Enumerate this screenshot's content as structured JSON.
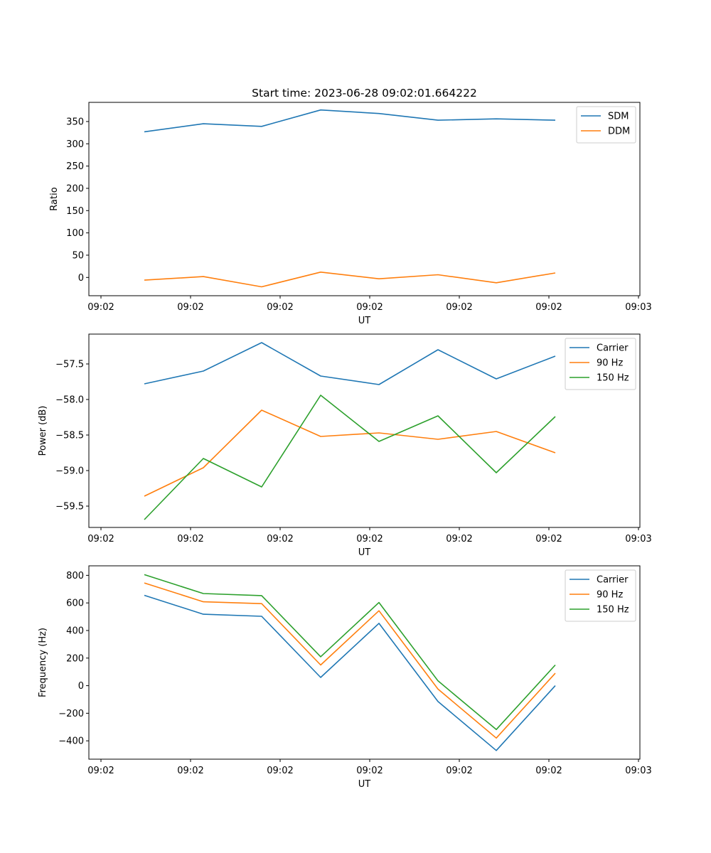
{
  "chart_data": [
    {
      "type": "line",
      "title": "Start time: 2023-06-28 09:02:01.664222",
      "xlabel": "UT",
      "ylabel": "Ratio",
      "x_tick_labels": [
        "09:02",
        "09:02",
        "09:02",
        "09:02",
        "09:02",
        "09:02",
        "09:03"
      ],
      "y_ticks": [
        0,
        50,
        100,
        150,
        200,
        250,
        300,
        350
      ],
      "ylim": [
        -41,
        393
      ],
      "legend_position": "top-right",
      "series": [
        {
          "name": "SDM",
          "color": "#1f77b4",
          "values": [
            327,
            345,
            339,
            376,
            368,
            353,
            356,
            353
          ]
        },
        {
          "name": "DDM",
          "color": "#ff7f0e",
          "values": [
            -6,
            2,
            -21,
            12,
            -3,
            6,
            -12,
            10
          ]
        }
      ]
    },
    {
      "type": "line",
      "title": "",
      "xlabel": "UT",
      "ylabel": "Power (dB)",
      "x_tick_labels": [
        "09:02",
        "09:02",
        "09:02",
        "09:02",
        "09:02",
        "09:02",
        "09:03"
      ],
      "y_ticks": [
        -59.5,
        -59.0,
        -58.5,
        -58.0,
        -57.5
      ],
      "y_tick_labels": [
        "−59.5",
        "−59.0",
        "−58.5",
        "−58.0",
        "−57.5"
      ],
      "ylim": [
        -59.8,
        -57.08
      ],
      "legend_position": "top-right",
      "series": [
        {
          "name": "Carrier",
          "color": "#1f77b4",
          "values": [
            -57.78,
            -57.6,
            -57.2,
            -57.67,
            -57.79,
            -57.3,
            -57.71,
            -57.39
          ]
        },
        {
          "name": "90 Hz",
          "color": "#ff7f0e",
          "values": [
            -59.36,
            -58.96,
            -58.15,
            -58.52,
            -58.47,
            -58.56,
            -58.45,
            -58.75
          ]
        },
        {
          "name": "150 Hz",
          "color": "#2ca02c",
          "values": [
            -59.69,
            -58.83,
            -59.23,
            -57.94,
            -58.59,
            -58.23,
            -59.03,
            -58.24
          ]
        }
      ]
    },
    {
      "type": "line",
      "title": "",
      "xlabel": "UT",
      "ylabel": "Frequency (Hz)",
      "x_tick_labels": [
        "09:02",
        "09:02",
        "09:02",
        "09:02",
        "09:02",
        "09:02",
        "09:03"
      ],
      "y_ticks": [
        -400,
        -200,
        0,
        200,
        400,
        600,
        800
      ],
      "y_tick_labels": [
        "−400",
        "−200",
        "0",
        "200",
        "400",
        "600",
        "800"
      ],
      "ylim": [
        -533,
        869
      ],
      "legend_position": "top-right",
      "series": [
        {
          "name": "Carrier",
          "color": "#1f77b4",
          "values": [
            655,
            518,
            503,
            60,
            452,
            -115,
            -470,
            0
          ]
        },
        {
          "name": "90 Hz",
          "color": "#ff7f0e",
          "values": [
            745,
            608,
            595,
            150,
            543,
            -25,
            -380,
            90
          ]
        },
        {
          "name": "150 Hz",
          "color": "#2ca02c",
          "values": [
            805,
            668,
            653,
            210,
            603,
            35,
            -318,
            150
          ]
        }
      ]
    }
  ]
}
